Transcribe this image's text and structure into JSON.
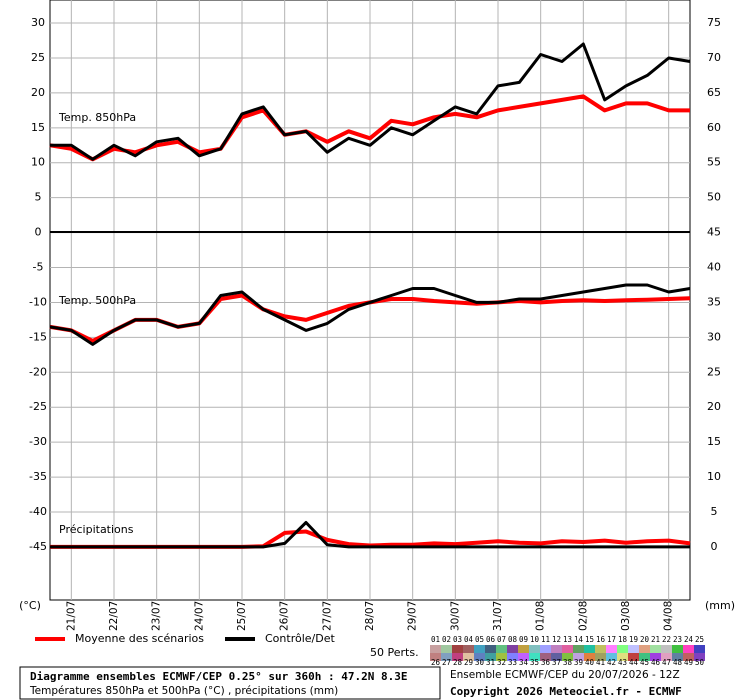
{
  "chart_data": {
    "type": "line",
    "x": [
      0,
      0.5,
      1,
      1.5,
      2,
      2.5,
      3,
      3.5,
      4,
      4.5,
      5,
      5.5,
      6,
      6.5,
      7,
      7.5,
      8,
      8.5,
      9,
      9.5,
      10,
      10.5,
      11,
      11.5,
      12,
      12.5,
      13,
      13.5,
      14,
      14.5,
      15
    ],
    "xlim": [
      0,
      15
    ],
    "xticks": [
      {
        "value": 0.5,
        "label": "21/07"
      },
      {
        "value": 1.5,
        "label": "22/07"
      },
      {
        "value": 2.5,
        "label": "23/07"
      },
      {
        "value": 3.5,
        "label": "24/07"
      },
      {
        "value": 4.5,
        "label": "25/07"
      },
      {
        "value": 5.5,
        "label": "26/07"
      },
      {
        "value": 6.5,
        "label": "27/07"
      },
      {
        "value": 7.5,
        "label": "28/07"
      },
      {
        "value": 8.5,
        "label": "29/07"
      },
      {
        "value": 9.5,
        "label": "30/07"
      },
      {
        "value": 10.5,
        "label": "31/07"
      },
      {
        "value": 11.5,
        "label": "01/08"
      },
      {
        "value": 12.5,
        "label": "02/08"
      },
      {
        "value": 13.5,
        "label": "03/08"
      },
      {
        "value": 14.5,
        "label": "04/08"
      }
    ],
    "ylim": [
      -52.6,
      33.3
    ],
    "yticks": [
      30,
      25,
      20,
      15,
      10,
      5,
      0,
      -5,
      -10,
      -15,
      -20,
      -25,
      -30,
      -35,
      -40,
      -45
    ],
    "y2lim": [
      -7.6,
      78.3
    ],
    "y2ticks": [
      75,
      70,
      65,
      60,
      55,
      50,
      45,
      40,
      35,
      30,
      25,
      20,
      15,
      10,
      5,
      0
    ],
    "ylabel": "(°C)",
    "y2label": "(mm)",
    "grid": true,
    "legend": {
      "mean": {
        "name": "Moyenne des scénarios",
        "color": "#ff0000"
      },
      "control": {
        "name": "Contrôle/Det",
        "color": "#000000"
      }
    },
    "panels": [
      {
        "label": "Temp. 850hPa",
        "axis": "y",
        "mean": [
          12.5,
          12,
          10.5,
          12,
          11.5,
          12.5,
          13,
          11.5,
          12,
          16.5,
          17.5,
          14,
          14.5,
          13,
          14.5,
          13.5,
          16,
          15.5,
          16.5,
          17,
          16.5,
          17.5,
          18,
          18.5,
          19,
          19.5,
          17.5,
          18.5,
          18.5,
          17.5,
          17.5
        ],
        "control": [
          12.5,
          12.5,
          10.5,
          12.5,
          11,
          13,
          13.5,
          11,
          12,
          17,
          18,
          14,
          14.5,
          11.5,
          13.5,
          12.5,
          15,
          14,
          16,
          18,
          17,
          21,
          21.5,
          25.5,
          24.5,
          27,
          19,
          21,
          22.5,
          25,
          24.5
        ]
      },
      {
        "label": "Temp. 500hPa",
        "axis": "y",
        "mean": [
          -13.5,
          -14,
          -15.5,
          -14,
          -12.5,
          -12.5,
          -13.5,
          -13,
          -9.5,
          -9,
          -11,
          -12,
          -12.5,
          -11.5,
          -10.5,
          -10,
          -9.5,
          -9.5,
          -9.8,
          -10,
          -10.2,
          -10,
          -9.8,
          -10,
          -9.8,
          -9.7,
          -9.8,
          -9.7,
          -9.6,
          -9.5,
          -9.4
        ],
        "control": [
          -13.5,
          -14,
          -16,
          -14,
          -12.5,
          -12.5,
          -13.5,
          -13,
          -9,
          -8.5,
          -11,
          -12.5,
          -14,
          -13,
          -11,
          -10,
          -9,
          -8,
          -8,
          -9,
          -10,
          -10,
          -9.5,
          -9.5,
          -9,
          -8.5,
          -8,
          -7.5,
          -7.5,
          -8.5,
          -8
        ]
      },
      {
        "label": "Précipitations",
        "axis": "y2",
        "mean": [
          0,
          0,
          0,
          0,
          0,
          0,
          0,
          0,
          0,
          0,
          0.1,
          2,
          2.2,
          1,
          0.4,
          0.2,
          0.3,
          0.3,
          0.5,
          0.4,
          0.6,
          0.8,
          0.6,
          0.5,
          0.8,
          0.7,
          0.9,
          0.6,
          0.8,
          0.9,
          0.5
        ],
        "control": [
          0,
          0,
          0,
          0,
          0,
          0,
          0,
          0,
          0,
          0,
          0,
          0.5,
          3.5,
          0.3,
          0,
          0,
          0,
          0,
          0,
          0,
          0,
          0,
          0,
          0,
          0,
          0,
          0,
          0,
          0,
          0,
          0
        ]
      }
    ],
    "perts_label": "50 Perts.",
    "perts": [
      {
        "name": "01",
        "color": "#c8a0a0"
      },
      {
        "name": "02",
        "color": "#a0c8a0"
      },
      {
        "name": "03",
        "color": "#a04040"
      },
      {
        "name": "04",
        "color": "#a06060"
      },
      {
        "name": "05",
        "color": "#40a0c0"
      },
      {
        "name": "06",
        "color": "#406080"
      },
      {
        "name": "07",
        "color": "#60c080"
      },
      {
        "name": "08",
        "color": "#8040a0"
      },
      {
        "name": "09",
        "color": "#c0a040"
      },
      {
        "name": "10",
        "color": "#80c0c0"
      },
      {
        "name": "11",
        "color": "#a0a0ff"
      },
      {
        "name": "12",
        "color": "#c080c0"
      },
      {
        "name": "13",
        "color": "#e060a0"
      },
      {
        "name": "14",
        "color": "#60a060"
      },
      {
        "name": "15",
        "color": "#20c0a0"
      },
      {
        "name": "16",
        "color": "#c0c060"
      },
      {
        "name": "17",
        "color": "#ff80ff"
      },
      {
        "name": "18",
        "color": "#80ff80"
      },
      {
        "name": "19",
        "color": "#c0c0ff"
      },
      {
        "name": "20",
        "color": "#e0a080"
      },
      {
        "name": "21",
        "color": "#a0e0a0"
      },
      {
        "name": "22",
        "color": "#c0c0c0"
      },
      {
        "name": "23",
        "color": "#40c040"
      },
      {
        "name": "24",
        "color": "#ff40c0"
      },
      {
        "name": "25",
        "color": "#4040c0"
      },
      {
        "name": "26",
        "color": "#c08080"
      },
      {
        "name": "27",
        "color": "#80a0c0"
      },
      {
        "name": "28",
        "color": "#c04080"
      },
      {
        "name": "29",
        "color": "#e0c0a0"
      },
      {
        "name": "30",
        "color": "#6080c0"
      },
      {
        "name": "31",
        "color": "#40a0a0"
      },
      {
        "name": "32",
        "color": "#a0c040"
      },
      {
        "name": "33",
        "color": "#8080ff"
      },
      {
        "name": "34",
        "color": "#c060ff"
      },
      {
        "name": "35",
        "color": "#40e0c0"
      },
      {
        "name": "36",
        "color": "#a06080"
      },
      {
        "name": "37",
        "color": "#6060a0"
      },
      {
        "name": "38",
        "color": "#80c040"
      },
      {
        "name": "39",
        "color": "#c0a0e0"
      },
      {
        "name": "40",
        "color": "#e08040"
      },
      {
        "name": "41",
        "color": "#a0a060"
      },
      {
        "name": "42",
        "color": "#60c0e0"
      },
      {
        "name": "43",
        "color": "#e0e080"
      },
      {
        "name": "44",
        "color": "#c04040"
      },
      {
        "name": "45",
        "color": "#40c080"
      },
      {
        "name": "46",
        "color": "#a040e0"
      },
      {
        "name": "47",
        "color": "#e0a0c0"
      },
      {
        "name": "48",
        "color": "#6080a0"
      },
      {
        "name": "49",
        "color": "#c06060"
      },
      {
        "name": "50",
        "color": "#8040c0"
      }
    ],
    "title": "Diagramme ensembles ECMWF/CEP 0.25° sur 360h : 47.2N 8.3E",
    "subtitle": "Températures 850hPa et 500hPa (°C) , précipitations (mm)",
    "run": "Ensemble ECMWF/CEP du 20/07/2026 - 12Z",
    "copyright": "Copyright 2026 Meteociel.fr - ECMWF"
  }
}
